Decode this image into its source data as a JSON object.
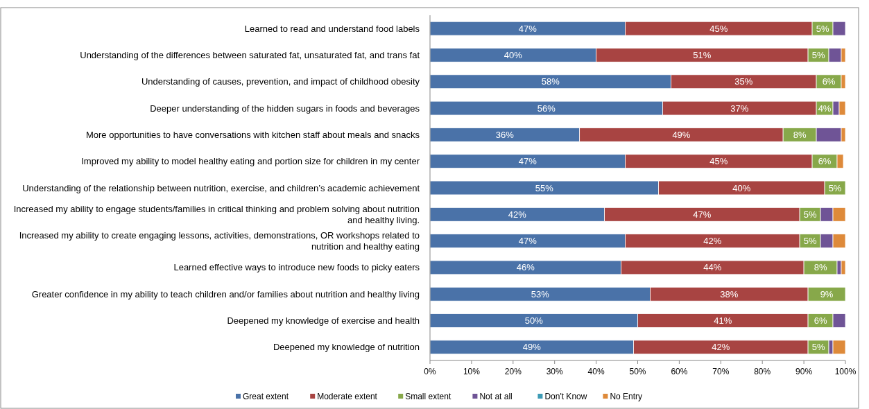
{
  "chart_data": {
    "type": "bar",
    "orientation": "horizontal",
    "stacked": true,
    "categories": [
      "Learned to read and understand food labels",
      "Understanding of the differences between saturated fat, unsaturated fat, and trans fat",
      "Understanding of causes, prevention, and impact of childhood obesity",
      "Deeper understanding of the hidden sugars in foods and beverages",
      "More opportunities to have conversations with kitchen staff about meals and snacks",
      "Improved my ability to model healthy eating and portion size for children in my center",
      "Understanding of the relationship between nutrition, exercise, and children’s academic achievement",
      "Increased my ability to engage students/families in critical thinking and problem solving about nutrition and healthy living.",
      "Increased my ability to create engaging lessons, activities, demonstrations, OR workshops related to nutrition and healthy eating",
      "Learned effective ways to introduce new foods to picky eaters",
      "Greater confidence in my ability to teach children and/or families about nutrition and healthy living",
      "Deepened my knowledge of exercise and health",
      "Deepened my knowledge of nutrition"
    ],
    "series": [
      {
        "name": "Great extent",
        "color": "#4a72a8",
        "values": [
          47,
          40,
          58,
          56,
          36,
          47,
          55,
          42,
          47,
          46,
          53,
          50,
          49
        ],
        "value_labels": [
          "47%",
          "40%",
          "58%",
          "56%",
          "36%",
          "47%",
          "55%",
          "42%",
          "47%",
          "46%",
          "53%",
          "50%",
          "49%"
        ]
      },
      {
        "name": "Moderate extent",
        "color": "#a84442",
        "values": [
          45,
          51,
          35,
          37,
          49,
          45,
          40,
          47,
          42,
          44,
          38,
          41,
          42
        ],
        "value_labels": [
          "45%",
          "51%",
          "35%",
          "37%",
          "49%",
          "45%",
          "40%",
          "47%",
          "42%",
          "44%",
          "38%",
          "41%",
          "42%"
        ]
      },
      {
        "name": "Small extent",
        "color": "#87a84a",
        "values": [
          5,
          5,
          6,
          4,
          8,
          6,
          5,
          5,
          5,
          8,
          9,
          6,
          5
        ],
        "value_labels": [
          "5%",
          "5%",
          "6%",
          "4%",
          "8%",
          "6%",
          "5%",
          "5%",
          "5%",
          "8%",
          "9%",
          "6%",
          "5%"
        ]
      },
      {
        "name": "Not at all",
        "color": "#6f5496",
        "values": [
          3,
          3,
          0,
          1.5,
          6,
          0,
          0,
          3,
          3,
          1,
          0,
          3,
          1
        ]
      },
      {
        "name": "Don't Know",
        "color": "#3e9bb5",
        "values": [
          0,
          0,
          0,
          0,
          0,
          0,
          0,
          0,
          0,
          0,
          0,
          0,
          0
        ]
      },
      {
        "name": "No Entry",
        "color": "#de8a3a",
        "values": [
          0,
          1,
          1,
          1.5,
          1,
          1.5,
          0,
          3,
          3,
          1,
          0,
          0,
          3
        ]
      }
    ],
    "xlim": [
      0,
      100
    ],
    "xticks": [
      {
        "value": 0,
        "label": "0%"
      },
      {
        "value": 10,
        "label": "10%"
      },
      {
        "value": 20,
        "label": "20%"
      },
      {
        "value": 30,
        "label": "30%"
      },
      {
        "value": 40,
        "label": "40%"
      },
      {
        "value": 50,
        "label": "50%"
      },
      {
        "value": 60,
        "label": "60%"
      },
      {
        "value": 70,
        "label": "70%"
      },
      {
        "value": 80,
        "label": "80%"
      },
      {
        "value": 90,
        "label": "90%"
      },
      {
        "value": 100,
        "label": "100%"
      }
    ],
    "grid": false,
    "legend": "bottom"
  }
}
